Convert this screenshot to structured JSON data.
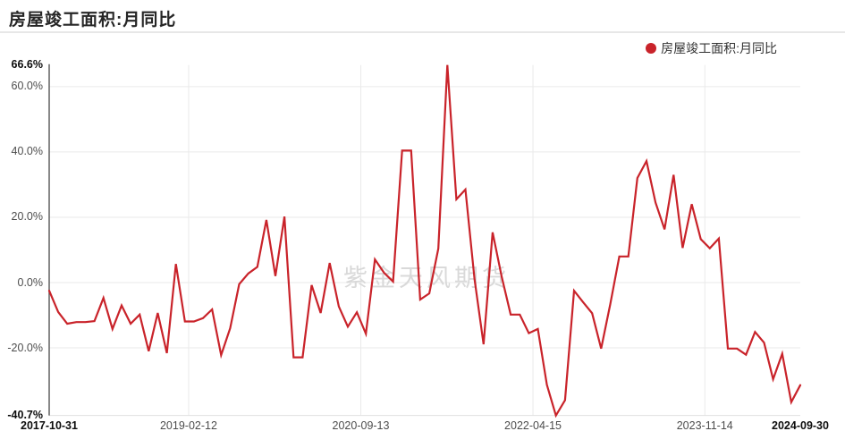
{
  "page": {
    "title": "房屋竣工面积:月同比"
  },
  "legend": {
    "label": "房屋竣工面积:月同比",
    "marker_color": "#c9232a"
  },
  "watermark": {
    "text": "紫金天风期货"
  },
  "chart_data": {
    "type": "line",
    "title": "房屋竣工面积:月同比",
    "series_name": "房屋竣工面积:月同比",
    "line_color": "#c9232a",
    "unit": "%",
    "grid": "light-gray horizontal at y-ticks, vertical at inner x-ticks",
    "legend_position": "top-right",
    "ylim": [
      -40.7,
      66.6
    ],
    "y_ticks": [
      {
        "label": "66.6%",
        "value": 66.6,
        "emphasis": true
      },
      {
        "label": "60.0%",
        "value": 60,
        "emphasis": false
      },
      {
        "label": "40.0%",
        "value": 40,
        "emphasis": false
      },
      {
        "label": "20.0%",
        "value": 20,
        "emphasis": false
      },
      {
        "label": "0.0%",
        "value": 0,
        "emphasis": false
      },
      {
        "label": "-20.0%",
        "value": -20,
        "emphasis": false
      },
      {
        "label": "-40.7%",
        "value": -40.7,
        "emphasis": true
      }
    ],
    "x_ticks": [
      {
        "label": "2017-10-31",
        "date": "2017-10-31",
        "emphasis": true
      },
      {
        "label": "2019-02-12",
        "date": "2019-02-12",
        "emphasis": false
      },
      {
        "label": "2020-09-13",
        "date": "2020-09-13",
        "emphasis": false
      },
      {
        "label": "2022-04-15",
        "date": "2022-04-15",
        "emphasis": false
      },
      {
        "label": "2023-11-14",
        "date": "2023-11-14",
        "emphasis": false
      },
      {
        "label": "2024-09-30",
        "date": "2024-09-30",
        "emphasis": true
      }
    ],
    "x": [
      "2017-10",
      "2017-11",
      "2017-12",
      "2018-01",
      "2018-02",
      "2018-03",
      "2018-04",
      "2018-05",
      "2018-06",
      "2018-07",
      "2018-08",
      "2018-09",
      "2018-10",
      "2018-11",
      "2018-12",
      "2019-01",
      "2019-02",
      "2019-03",
      "2019-04",
      "2019-05",
      "2019-06",
      "2019-07",
      "2019-08",
      "2019-09",
      "2019-10",
      "2019-11",
      "2019-12",
      "2020-01",
      "2020-02",
      "2020-03",
      "2020-04",
      "2020-05",
      "2020-06",
      "2020-07",
      "2020-08",
      "2020-09",
      "2020-10",
      "2020-11",
      "2020-12",
      "2021-01",
      "2021-02",
      "2021-03",
      "2021-04",
      "2021-05",
      "2021-06",
      "2021-07",
      "2021-08",
      "2021-09",
      "2021-10",
      "2021-11",
      "2021-12",
      "2022-01",
      "2022-02",
      "2022-03",
      "2022-04",
      "2022-05",
      "2022-06",
      "2022-07",
      "2022-08",
      "2022-09",
      "2022-10",
      "2022-11",
      "2022-12",
      "2023-01",
      "2023-02",
      "2023-03",
      "2023-04",
      "2023-05",
      "2023-06",
      "2023-07",
      "2023-08",
      "2023-09",
      "2023-10",
      "2023-11",
      "2023-12",
      "2024-01",
      "2024-02",
      "2024-03",
      "2024-04",
      "2024-05",
      "2024-06",
      "2024-07",
      "2024-08",
      "2024-09"
    ],
    "values": [
      -2.5,
      -9.0,
      -12.6,
      -12.1,
      -12.1,
      -11.8,
      -4.7,
      -14.2,
      -7.0,
      -12.6,
      -9.8,
      -21.0,
      -9.3,
      -21.6,
      5.7,
      -11.9,
      -11.9,
      -10.9,
      -8.2,
      -22.2,
      -14.0,
      -0.5,
      2.8,
      4.8,
      19.2,
      2.0,
      20.2,
      -22.9,
      -22.9,
      -0.8,
      -9.3,
      6.0,
      -7.3,
      -13.5,
      -9.1,
      -15.7,
      7.1,
      3.0,
      0.3,
      40.4,
      40.4,
      -5.2,
      -3.3,
      10.4,
      66.6,
      25.5,
      28.5,
      1.0,
      -18.9,
      15.4,
      1.9,
      -9.8,
      -9.8,
      -15.5,
      -14.2,
      -31.3,
      -40.7,
      -36.0,
      -2.5,
      -6.0,
      -9.4,
      -20.2,
      -6.6,
      8.0,
      8.0,
      32.0,
      37.2,
      24.5,
      16.3,
      33.0,
      10.6,
      24.0,
      13.3,
      10.5,
      13.5,
      -20.2,
      -20.2,
      -22.1,
      -15.1,
      -18.4,
      -29.6,
      -21.8,
      -36.6,
      -31.4
    ]
  }
}
